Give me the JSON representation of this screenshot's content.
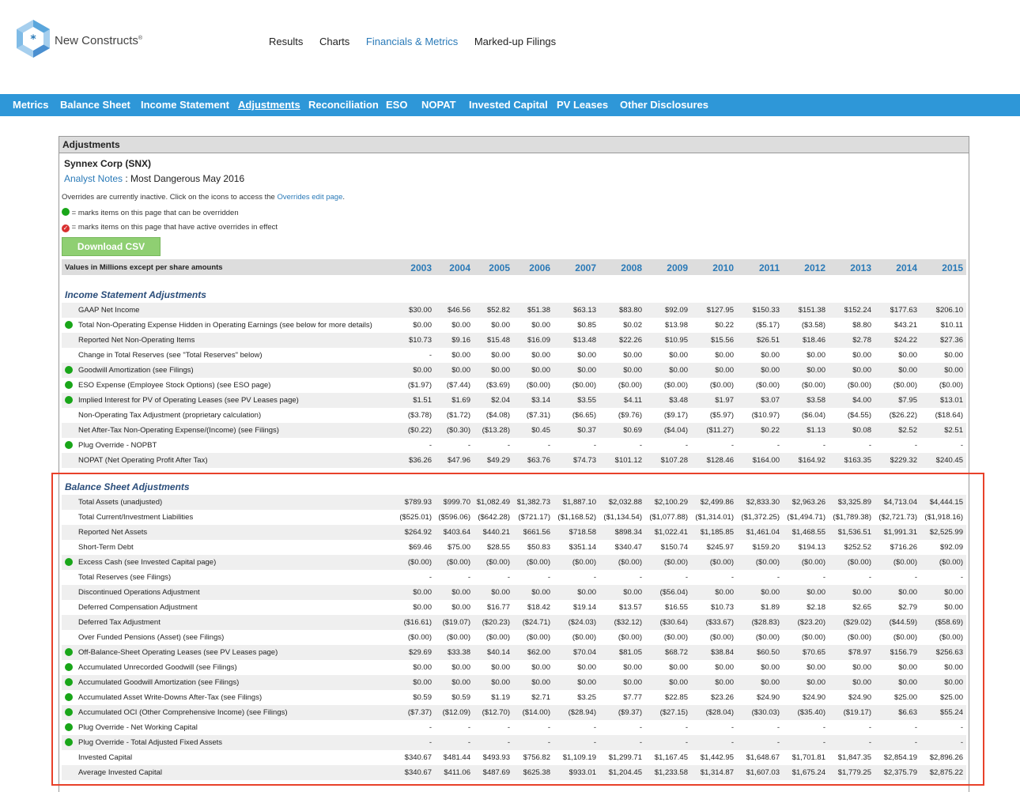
{
  "brand": {
    "name": "New Constructs",
    "mark": "®"
  },
  "top_nav": [
    {
      "label": "Results",
      "active": false
    },
    {
      "label": "Charts",
      "active": false
    },
    {
      "label": "Financials & Metrics",
      "active": true
    },
    {
      "label": "Marked-up Filings",
      "active": false
    }
  ],
  "sub_nav": [
    {
      "label": "Metrics",
      "active": false
    },
    {
      "label": "Balance Sheet",
      "active": false
    },
    {
      "label": "Income Statement",
      "active": false
    },
    {
      "label": "Adjustments",
      "active": true
    },
    {
      "label": "Reconciliation",
      "active": false
    },
    {
      "label": "ESO",
      "active": false
    },
    {
      "label": "NOPAT",
      "active": false
    },
    {
      "label": "Invested Capital",
      "active": false
    },
    {
      "label": "PV Leases",
      "active": false
    },
    {
      "label": "Other Disclosures",
      "active": false
    }
  ],
  "panel_title": "Adjustments",
  "company": "Synnex Corp (SNX)",
  "analyst_notes": {
    "link": "Analyst Notes",
    "text": " : Most Dangerous May 2016"
  },
  "overrides": {
    "text": "Overrides are currently inactive. Click on the icons to access the ",
    "link": "Overrides edit page",
    "end": "."
  },
  "legend_green": "= marks items on this page that can be overridden",
  "legend_red": "= marks items on this page that have active overrides in effect",
  "download_label": "Download CSV",
  "table_label": "Values in Millions except per share amounts",
  "years": [
    "2003",
    "2004",
    "2005",
    "2006",
    "2007",
    "2008",
    "2009",
    "2010",
    "2011",
    "2012",
    "2013",
    "2014",
    "2015"
  ],
  "income_title": "Income Statement Adjustments",
  "income_rows": [
    {
      "label": "GAAP Net Income",
      "dot": false,
      "values": [
        "$30.00",
        "$46.56",
        "$52.82",
        "$51.38",
        "$63.13",
        "$83.80",
        "$92.09",
        "$127.95",
        "$150.33",
        "$151.38",
        "$152.24",
        "$177.63",
        "$206.10"
      ]
    },
    {
      "label": "Total Non-Operating Expense Hidden in Operating Earnings (see below for more details)",
      "dot": true,
      "values": [
        "$0.00",
        "$0.00",
        "$0.00",
        "$0.00",
        "$0.85",
        "$0.02",
        "$13.98",
        "$0.22",
        "($5.17)",
        "($3.58)",
        "$8.80",
        "$43.21",
        "$10.11"
      ]
    },
    {
      "label": "Reported Net Non-Operating Items",
      "dot": false,
      "values": [
        "$10.73",
        "$9.16",
        "$15.48",
        "$16.09",
        "$13.48",
        "$22.26",
        "$10.95",
        "$15.56",
        "$26.51",
        "$18.46",
        "$2.78",
        "$24.22",
        "$27.36"
      ]
    },
    {
      "label": "Change in Total Reserves (see \"Total Reserves\" below)",
      "dot": false,
      "values": [
        "-",
        "$0.00",
        "$0.00",
        "$0.00",
        "$0.00",
        "$0.00",
        "$0.00",
        "$0.00",
        "$0.00",
        "$0.00",
        "$0.00",
        "$0.00",
        "$0.00"
      ]
    },
    {
      "label": "Goodwill Amortization (see Filings)",
      "dot": true,
      "values": [
        "$0.00",
        "$0.00",
        "$0.00",
        "$0.00",
        "$0.00",
        "$0.00",
        "$0.00",
        "$0.00",
        "$0.00",
        "$0.00",
        "$0.00",
        "$0.00",
        "$0.00"
      ]
    },
    {
      "label": "ESO Expense (Employee Stock Options) (see ESO page)",
      "dot": true,
      "values": [
        "($1.97)",
        "($7.44)",
        "($3.69)",
        "($0.00)",
        "($0.00)",
        "($0.00)",
        "($0.00)",
        "($0.00)",
        "($0.00)",
        "($0.00)",
        "($0.00)",
        "($0.00)",
        "($0.00)"
      ]
    },
    {
      "label": "Implied Interest for PV of Operating Leases (see PV Leases page)",
      "dot": true,
      "values": [
        "$1.51",
        "$1.69",
        "$2.04",
        "$3.14",
        "$3.55",
        "$4.11",
        "$3.48",
        "$1.97",
        "$3.07",
        "$3.58",
        "$4.00",
        "$7.95",
        "$13.01"
      ]
    },
    {
      "label": "Non-Operating Tax Adjustment (proprietary calculation)",
      "dot": false,
      "values": [
        "($3.78)",
        "($1.72)",
        "($4.08)",
        "($7.31)",
        "($6.65)",
        "($9.76)",
        "($9.17)",
        "($5.97)",
        "($10.97)",
        "($6.04)",
        "($4.55)",
        "($26.22)",
        "($18.64)"
      ]
    },
    {
      "label": "Net After-Tax Non-Operating Expense/(Income) (see Filings)",
      "dot": false,
      "values": [
        "($0.22)",
        "($0.30)",
        "($13.28)",
        "$0.45",
        "$0.37",
        "$0.69",
        "($4.04)",
        "($11.27)",
        "$0.22",
        "$1.13",
        "$0.08",
        "$2.52",
        "$2.51"
      ]
    },
    {
      "label": "Plug Override - NOPBT",
      "dot": true,
      "values": [
        "-",
        "-",
        "-",
        "-",
        "-",
        "-",
        "-",
        "-",
        "-",
        "-",
        "-",
        "-",
        "-"
      ]
    },
    {
      "label": "NOPAT (Net Operating Profit After Tax)",
      "dot": false,
      "values": [
        "$36.26",
        "$47.96",
        "$49.29",
        "$63.76",
        "$74.73",
        "$101.12",
        "$107.28",
        "$128.46",
        "$164.00",
        "$164.92",
        "$163.35",
        "$229.32",
        "$240.45"
      ]
    }
  ],
  "balance_title": "Balance Sheet Adjustments",
  "balance_rows": [
    {
      "label": "Total Assets (unadjusted)",
      "dot": false,
      "values": [
        "$789.93",
        "$999.70",
        "$1,082.49",
        "$1,382.73",
        "$1,887.10",
        "$2,032.88",
        "$2,100.29",
        "$2,499.86",
        "$2,833.30",
        "$2,963.26",
        "$3,325.89",
        "$4,713.04",
        "$4,444.15"
      ]
    },
    {
      "label": "Total Current/Investment Liabilities",
      "dot": false,
      "values": [
        "($525.01)",
        "($596.06)",
        "($642.28)",
        "($721.17)",
        "($1,168.52)",
        "($1,134.54)",
        "($1,077.88)",
        "($1,314.01)",
        "($1,372.25)",
        "($1,494.71)",
        "($1,789.38)",
        "($2,721.73)",
        "($1,918.16)"
      ]
    },
    {
      "label": "Reported Net Assets",
      "dot": false,
      "values": [
        "$264.92",
        "$403.64",
        "$440.21",
        "$661.56",
        "$718.58",
        "$898.34",
        "$1,022.41",
        "$1,185.85",
        "$1,461.04",
        "$1,468.55",
        "$1,536.51",
        "$1,991.31",
        "$2,525.99"
      ]
    },
    {
      "label": "Short-Term Debt",
      "dot": false,
      "values": [
        "$69.46",
        "$75.00",
        "$28.55",
        "$50.83",
        "$351.14",
        "$340.47",
        "$150.74",
        "$245.97",
        "$159.20",
        "$194.13",
        "$252.52",
        "$716.26",
        "$92.09"
      ]
    },
    {
      "label": "Excess Cash (see Invested Capital page)",
      "dot": true,
      "values": [
        "($0.00)",
        "($0.00)",
        "($0.00)",
        "($0.00)",
        "($0.00)",
        "($0.00)",
        "($0.00)",
        "($0.00)",
        "($0.00)",
        "($0.00)",
        "($0.00)",
        "($0.00)",
        "($0.00)"
      ]
    },
    {
      "label": "Total Reserves (see Filings)",
      "dot": false,
      "values": [
        "-",
        "-",
        "-",
        "-",
        "-",
        "-",
        "-",
        "-",
        "-",
        "-",
        "-",
        "-",
        "-"
      ]
    },
    {
      "label": "Discontinued Operations Adjustment",
      "dot": false,
      "values": [
        "$0.00",
        "$0.00",
        "$0.00",
        "$0.00",
        "$0.00",
        "$0.00",
        "($56.04)",
        "$0.00",
        "$0.00",
        "$0.00",
        "$0.00",
        "$0.00",
        "$0.00"
      ]
    },
    {
      "label": "Deferred Compensation Adjustment",
      "dot": false,
      "values": [
        "$0.00",
        "$0.00",
        "$16.77",
        "$18.42",
        "$19.14",
        "$13.57",
        "$16.55",
        "$10.73",
        "$1.89",
        "$2.18",
        "$2.65",
        "$2.79",
        "$0.00"
      ]
    },
    {
      "label": "Deferred Tax Adjustment",
      "dot": false,
      "values": [
        "($16.61)",
        "($19.07)",
        "($20.23)",
        "($24.71)",
        "($24.03)",
        "($32.12)",
        "($30.64)",
        "($33.67)",
        "($28.83)",
        "($23.20)",
        "($29.02)",
        "($44.59)",
        "($58.69)"
      ]
    },
    {
      "label": "Over Funded Pensions (Asset) (see Filings)",
      "dot": false,
      "values": [
        "($0.00)",
        "($0.00)",
        "($0.00)",
        "($0.00)",
        "($0.00)",
        "($0.00)",
        "($0.00)",
        "($0.00)",
        "($0.00)",
        "($0.00)",
        "($0.00)",
        "($0.00)",
        "($0.00)"
      ]
    },
    {
      "label": "Off-Balance-Sheet Operating Leases (see PV Leases page)",
      "dot": true,
      "values": [
        "$29.69",
        "$33.38",
        "$40.14",
        "$62.00",
        "$70.04",
        "$81.05",
        "$68.72",
        "$38.84",
        "$60.50",
        "$70.65",
        "$78.97",
        "$156.79",
        "$256.63"
      ]
    },
    {
      "label": "Accumulated Unrecorded Goodwill (see Filings)",
      "dot": true,
      "values": [
        "$0.00",
        "$0.00",
        "$0.00",
        "$0.00",
        "$0.00",
        "$0.00",
        "$0.00",
        "$0.00",
        "$0.00",
        "$0.00",
        "$0.00",
        "$0.00",
        "$0.00"
      ]
    },
    {
      "label": "Accumulated Goodwill Amortization (see Filings)",
      "dot": true,
      "values": [
        "$0.00",
        "$0.00",
        "$0.00",
        "$0.00",
        "$0.00",
        "$0.00",
        "$0.00",
        "$0.00",
        "$0.00",
        "$0.00",
        "$0.00",
        "$0.00",
        "$0.00"
      ]
    },
    {
      "label": "Accumulated Asset Write-Downs After-Tax (see Filings)",
      "dot": true,
      "values": [
        "$0.59",
        "$0.59",
        "$1.19",
        "$2.71",
        "$3.25",
        "$7.77",
        "$22.85",
        "$23.26",
        "$24.90",
        "$24.90",
        "$24.90",
        "$25.00",
        "$25.00"
      ]
    },
    {
      "label": "Accumulated OCI (Other Comprehensive Income) (see Filings)",
      "dot": true,
      "values": [
        "($7.37)",
        "($12.09)",
        "($12.70)",
        "($14.00)",
        "($28.94)",
        "($9.37)",
        "($27.15)",
        "($28.04)",
        "($30.03)",
        "($35.40)",
        "($19.17)",
        "$6.63",
        "$55.24"
      ]
    },
    {
      "label": "Plug Override - Net Working Capital",
      "dot": true,
      "values": [
        "-",
        "-",
        "-",
        "-",
        "-",
        "-",
        "-",
        "-",
        "-",
        "-",
        "-",
        "-",
        "-"
      ]
    },
    {
      "label": "Plug Override - Total Adjusted Fixed Assets",
      "dot": true,
      "values": [
        "-",
        "-",
        "-",
        "-",
        "-",
        "-",
        "-",
        "-",
        "-",
        "-",
        "-",
        "-",
        "-"
      ]
    },
    {
      "label": "Invested Capital",
      "dot": false,
      "values": [
        "$340.67",
        "$481.44",
        "$493.93",
        "$756.82",
        "$1,109.19",
        "$1,299.71",
        "$1,167.45",
        "$1,442.95",
        "$1,648.67",
        "$1,701.81",
        "$1,847.35",
        "$2,854.19",
        "$2,896.26"
      ]
    },
    {
      "label": "Average Invested Capital",
      "dot": false,
      "values": [
        "$340.67",
        "$411.06",
        "$487.69",
        "$625.38",
        "$933.01",
        "$1,204.45",
        "$1,233.58",
        "$1,314.87",
        "$1,607.03",
        "$1,675.24",
        "$1,779.25",
        "$2,375.79",
        "$2,875.22"
      ]
    }
  ]
}
